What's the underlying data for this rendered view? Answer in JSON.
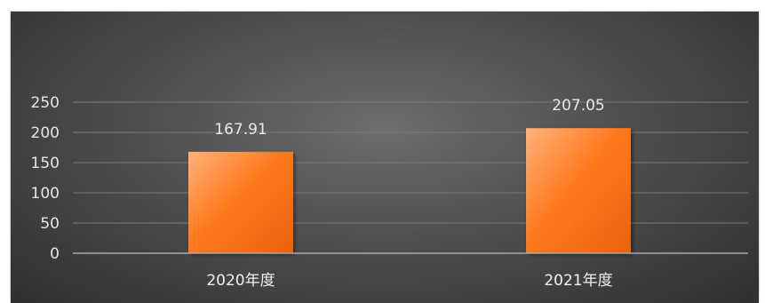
{
  "chart_data": {
    "type": "bar",
    "categories": [
      "2020年度",
      "2021年度"
    ],
    "values": [
      167.91,
      207.05
    ],
    "data_labels": [
      "167.91",
      "207.05"
    ],
    "yticks": [
      0,
      50,
      100,
      150,
      200,
      250
    ],
    "ylim": [
      0,
      250
    ],
    "grid": true,
    "legend": "none",
    "colors": {
      "bar_light": "#ffb27a",
      "bar_main": "#ff7a1f",
      "bar_dark": "#e9620d"
    }
  }
}
